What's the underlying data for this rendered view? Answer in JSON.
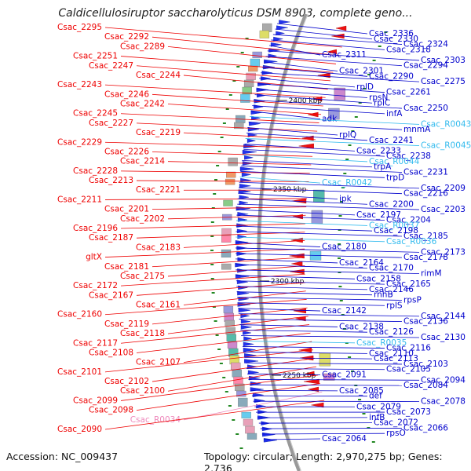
{
  "title": "Caldicellulosiruptor saccharolyticus DSM 8903, complete geno...",
  "accession": "Accession: NC_009437",
  "topology": "Topology: circular; Length: 2,970,275 bp; Genes: 2,736",
  "colors": {
    "reverse_label": "#ee0000",
    "forward_label": "#0000cc",
    "rna_label": "#33bbee",
    "pseudo_label": "#ee88bb",
    "backbone": "#999999"
  },
  "kbp_marks": [
    "2400 kbp",
    "2350 kbp",
    "2300 kbp",
    "2250 kbp"
  ],
  "left_labels": [
    {
      "text": "Csac_2295",
      "kind": "r"
    },
    {
      "text": "Csac_2292",
      "kind": "r"
    },
    {
      "text": "Csac_2289",
      "kind": "r"
    },
    {
      "text": "Csac_2251",
      "kind": "r"
    },
    {
      "text": "Csac_2247",
      "kind": "r"
    },
    {
      "text": "Csac_2244",
      "kind": "r"
    },
    {
      "text": "Csac_2243",
      "kind": "r"
    },
    {
      "text": "Csac_2246",
      "kind": "r"
    },
    {
      "text": "Csac_2242",
      "kind": "r"
    },
    {
      "text": "Csac_2245",
      "kind": "r"
    },
    {
      "text": "Csac_2227",
      "kind": "r"
    },
    {
      "text": "Csac_2219",
      "kind": "r"
    },
    {
      "text": "Csac_2229",
      "kind": "r"
    },
    {
      "text": "Csac_2226",
      "kind": "r"
    },
    {
      "text": "Csac_2214",
      "kind": "r"
    },
    {
      "text": "Csac_2228",
      "kind": "r"
    },
    {
      "text": "Csac_2213",
      "kind": "r"
    },
    {
      "text": "Csac_2221",
      "kind": "r"
    },
    {
      "text": "Csac_2211",
      "kind": "r"
    },
    {
      "text": "Csac_2201",
      "kind": "r"
    },
    {
      "text": "Csac_2202",
      "kind": "r"
    },
    {
      "text": "Csac_2196",
      "kind": "r"
    },
    {
      "text": "Csac_2187",
      "kind": "r"
    },
    {
      "text": "Csac_2183",
      "kind": "r"
    },
    {
      "text": "gltX",
      "kind": "r"
    },
    {
      "text": "Csac_2181",
      "kind": "r"
    },
    {
      "text": "Csac_2175",
      "kind": "r"
    },
    {
      "text": "Csac_2172",
      "kind": "r"
    },
    {
      "text": "Csac_2167",
      "kind": "r"
    },
    {
      "text": "Csac_2161",
      "kind": "r"
    },
    {
      "text": "Csac_2160",
      "kind": "r"
    },
    {
      "text": "Csac_2119",
      "kind": "r"
    },
    {
      "text": "Csac_2118",
      "kind": "r"
    },
    {
      "text": "Csac_2117",
      "kind": "r"
    },
    {
      "text": "Csac_2108",
      "kind": "r"
    },
    {
      "text": "Csac_2107",
      "kind": "r"
    },
    {
      "text": "Csac_2101",
      "kind": "r"
    },
    {
      "text": "Csac_2102",
      "kind": "r"
    },
    {
      "text": "Csac_2100",
      "kind": "r"
    },
    {
      "text": "Csac_2099",
      "kind": "r"
    },
    {
      "text": "Csac_2098",
      "kind": "r"
    },
    {
      "text": "Csac_R0034",
      "kind": "p"
    },
    {
      "text": "Csac_2090",
      "kind": "r"
    }
  ],
  "right_labels": [
    {
      "text": "Csac_2336",
      "kind": "f"
    },
    {
      "text": "Csac_2330",
      "kind": "f"
    },
    {
      "text": "Csac_2324",
      "kind": "f"
    },
    {
      "text": "Csac_2318",
      "kind": "f"
    },
    {
      "text": "Csac_2311",
      "kind": "f"
    },
    {
      "text": "Csac_2303",
      "kind": "f"
    },
    {
      "text": "Csac_2294",
      "kind": "f"
    },
    {
      "text": "Csac_2301",
      "kind": "f"
    },
    {
      "text": "Csac_2290",
      "kind": "f"
    },
    {
      "text": "Csac_2275",
      "kind": "f"
    },
    {
      "text": "rplD",
      "kind": "f"
    },
    {
      "text": "Csac_2261",
      "kind": "f"
    },
    {
      "text": "rpsN",
      "kind": "f"
    },
    {
      "text": "rplC",
      "kind": "f"
    },
    {
      "text": "Csac_2250",
      "kind": "f"
    },
    {
      "text": "infA",
      "kind": "f"
    },
    {
      "text": "adk",
      "kind": "f"
    },
    {
      "text": "Csac_R0043",
      "kind": "n"
    },
    {
      "text": "mnmA",
      "kind": "f"
    },
    {
      "text": "rplQ",
      "kind": "f"
    },
    {
      "text": "Csac_2241",
      "kind": "f"
    },
    {
      "text": "Csac_R0045",
      "kind": "n"
    },
    {
      "text": "Csac_2233",
      "kind": "f"
    },
    {
      "text": "Csac_2238",
      "kind": "f"
    },
    {
      "text": "Csac_R0044",
      "kind": "n"
    },
    {
      "text": "trpA",
      "kind": "f"
    },
    {
      "text": "Csac_2231",
      "kind": "f"
    },
    {
      "text": "trpD",
      "kind": "f"
    },
    {
      "text": "Csac_R0042",
      "kind": "n"
    },
    {
      "text": "Csac_2209",
      "kind": "f"
    },
    {
      "text": "Csac_2216",
      "kind": "f"
    },
    {
      "text": "ipk",
      "kind": "f"
    },
    {
      "text": "Csac_2200",
      "kind": "f"
    },
    {
      "text": "Csac_2203",
      "kind": "f"
    },
    {
      "text": "Csac_2197",
      "kind": "f"
    },
    {
      "text": "Csac_2204",
      "kind": "f"
    },
    {
      "text": "Csac_R0037",
      "kind": "n"
    },
    {
      "text": "Csac_2198",
      "kind": "f"
    },
    {
      "text": "Csac_2185",
      "kind": "f"
    },
    {
      "text": "Csac_R0036",
      "kind": "n"
    },
    {
      "text": "Csac_2180",
      "kind": "f"
    },
    {
      "text": "Csac_2173",
      "kind": "f"
    },
    {
      "text": "Csac_2178",
      "kind": "f"
    },
    {
      "text": "Csac_2164",
      "kind": "f"
    },
    {
      "text": "Csac_2170",
      "kind": "f"
    },
    {
      "text": "rimM",
      "kind": "f"
    },
    {
      "text": "Csac_2158",
      "kind": "f"
    },
    {
      "text": "Csac_2165",
      "kind": "f"
    },
    {
      "text": "Csac_2146",
      "kind": "f"
    },
    {
      "text": "rnhB",
      "kind": "f"
    },
    {
      "text": "rpsP",
      "kind": "f"
    },
    {
      "text": "rplS",
      "kind": "f"
    },
    {
      "text": "Csac_2142",
      "kind": "f"
    },
    {
      "text": "Csac_2144",
      "kind": "f"
    },
    {
      "text": "Csac_2136",
      "kind": "f"
    },
    {
      "text": "Csac_2138",
      "kind": "f"
    },
    {
      "text": "Csac_2126",
      "kind": "f"
    },
    {
      "text": "Csac_2130",
      "kind": "f"
    },
    {
      "text": "Csac_R0035",
      "kind": "n"
    },
    {
      "text": "Csac_2116",
      "kind": "f"
    },
    {
      "text": "Csac_2110",
      "kind": "f"
    },
    {
      "text": "Csac_2113",
      "kind": "f"
    },
    {
      "text": "Csac_2103",
      "kind": "f"
    },
    {
      "text": "Csac_2105",
      "kind": "f"
    },
    {
      "text": "Csac_2091",
      "kind": "f"
    },
    {
      "text": "Csac_2094",
      "kind": "f"
    },
    {
      "text": "Csac_2084",
      "kind": "f"
    },
    {
      "text": "Csac_2085",
      "kind": "f"
    },
    {
      "text": "def",
      "kind": "f"
    },
    {
      "text": "Csac_2078",
      "kind": "f"
    },
    {
      "text": "Csac_2079",
      "kind": "f"
    },
    {
      "text": "Csac_2073",
      "kind": "f"
    },
    {
      "text": "infB",
      "kind": "f"
    },
    {
      "text": "Csac_2072",
      "kind": "f"
    },
    {
      "text": "Csac_2066",
      "kind": "f"
    },
    {
      "text": "rpsO",
      "kind": "f"
    },
    {
      "text": "Csac_2064",
      "kind": "f"
    }
  ]
}
